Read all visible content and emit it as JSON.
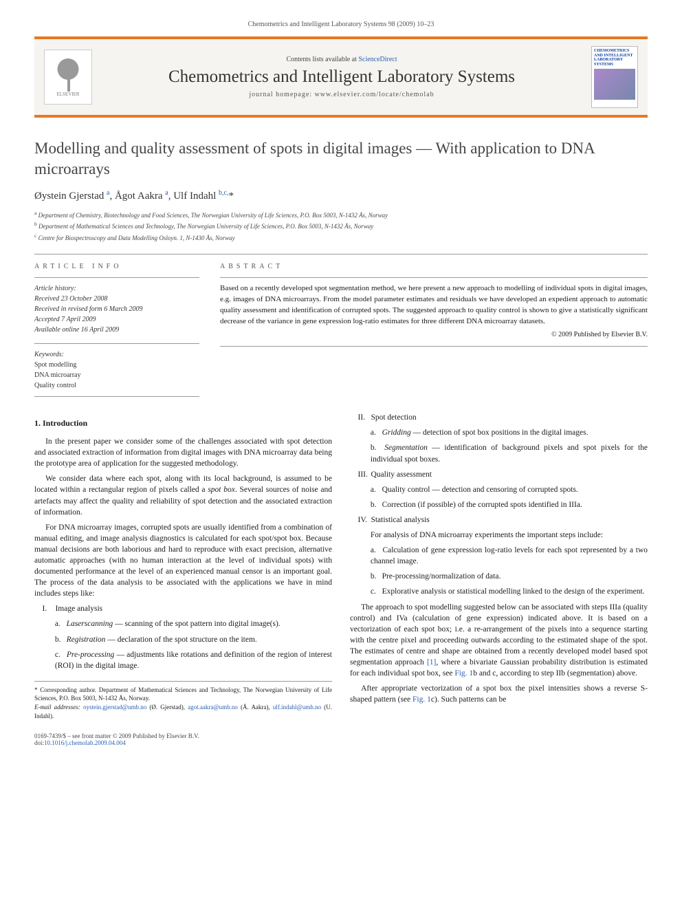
{
  "running_header": "Chemometrics and Intelligent Laboratory Systems 98 (2009) 10–23",
  "banner": {
    "publisher": "ELSEVIER",
    "contents_prefix": "Contents lists available at ",
    "contents_link": "ScienceDirect",
    "journal": "Chemometrics and Intelligent Laboratory Systems",
    "homepage_prefix": "journal homepage: ",
    "homepage": "www.elsevier.com/locate/chemolab",
    "cover_lines": [
      "CHEMOMETRICS",
      "AND INTELLIGENT",
      "LABORATORY",
      "SYSTEMS"
    ]
  },
  "title": "Modelling and quality assessment of spots in digital images — With application to DNA microarrays",
  "authors_html": "Øystein Gjerstad <sup>a</sup>, Ågot Aakra <sup>a</sup>, Ulf Indahl <sup>b,c,</sup>*",
  "affiliations": [
    {
      "mark": "a",
      "text": "Department of Chemistry, Biotechnology and Food Sciences, The Norwegian University of Life Sciences, P.O. Box 5003, N-1432 Ås, Norway"
    },
    {
      "mark": "b",
      "text": "Department of Mathematical Sciences and Technology, The Norwegian University of Life Sciences, P.O. Box 5003, N-1432 Ås, Norway"
    },
    {
      "mark": "c",
      "text": "Centre for Biospectroscopy and Data Modelling Osloyn. 1, N-1430 Ås, Norway"
    }
  ],
  "info": {
    "heading": "ARTICLE INFO",
    "history_label": "Article history:",
    "history": [
      "Received 23 October 2008",
      "Received in revised form 6 March 2009",
      "Accepted 7 April 2009",
      "Available online 16 April 2009"
    ],
    "keywords_label": "Keywords:",
    "keywords": [
      "Spot modelling",
      "DNA microarray",
      "Quality control"
    ]
  },
  "abstract": {
    "heading": "ABSTRACT",
    "text": "Based on a recently developed spot segmentation method, we here present a new approach to modelling of individual spots in digital images, e.g. images of DNA microarrays. From the model parameter estimates and residuals we have developed an expedient approach to automatic quality assessment and identification of corrupted spots. The suggested approach to quality control is shown to give a statistically significant decrease of the variance in gene expression log-ratio estimates for three different DNA microarray datasets.",
    "copyright": "© 2009 Published by Elsevier B.V."
  },
  "section1_heading": "1. Introduction",
  "paras": {
    "p1": "In the present paper we consider some of the challenges associated with spot detection and associated extraction of information from digital images with DNA microarray data being the prototype area of application for the suggested methodology.",
    "p2_a": "We consider data where each spot, along with its local background, is assumed to be located within a rectangular region of pixels called a ",
    "p2_term": "spot box",
    "p2_b": ". Several sources of noise and artefacts may affect the quality and reliability of spot detection and the associated extraction of information.",
    "p3": "For DNA microarray images, corrupted spots are usually identified from a combination of manual editing, and image analysis diagnostics is calculated for each spot/spot box. Because manual decisions are both laborious and hard to reproduce with exact precision, alternative automatic approaches (with no human interaction at the level of individual spots) with documented performance at the level of an experienced manual censor is an important goal. The process of the data analysis to be associated with the applications we have in mind includes steps like:",
    "p4": "The approach to spot modelling suggested below can be associated with steps IIIa (quality control) and IVa (calculation of gene expression) indicated above. It is based on a vectorization of each spot box; i.e. a re-arrangement of the pixels into a sequence starting with the centre pixel and proceeding outwards according to the estimated shape of the spot. The estimates of centre and shape are obtained from a recently developed model based spot segmentation approach ",
    "p4_ref": "[1]",
    "p4_b": ", where a bivariate Gaussian probability distribution is estimated for each individual spot box, see ",
    "p4_fig1": "Fig. 1",
    "p4_c": "b and c, according to step IIb (segmentation) above.",
    "p5_a": "After appropriate vectorization of a spot box the pixel intensities shows a reverse S-shaped pattern (see ",
    "p5_fig": "Fig. 1",
    "p5_b": "c). Such patterns can be"
  },
  "outline": {
    "I": {
      "label": "I.",
      "title": "Image analysis",
      "items": [
        {
          "l": "a.",
          "term": "Laserscanning",
          "rest": " — scanning of the spot pattern into digital image(s)."
        },
        {
          "l": "b.",
          "term": "Registration",
          "rest": " — declaration of the spot structure on the item."
        },
        {
          "l": "c.",
          "term": "Pre-processing",
          "rest": " — adjustments like rotations and definition of the region of interest (ROI) in the digital image."
        }
      ]
    },
    "II": {
      "label": "II.",
      "title": "Spot detection",
      "items": [
        {
          "l": "a.",
          "term": "Gridding",
          "rest": " — detection of spot box positions in the digital images."
        },
        {
          "l": "b.",
          "term": "Segmentation",
          "rest": " — identification of background pixels and spot pixels for the individual spot boxes."
        }
      ]
    },
    "III": {
      "label": "III.",
      "title": "Quality assessment",
      "items": [
        {
          "l": "a.",
          "term": "",
          "rest": "Quality control — detection and censoring of corrupted spots."
        },
        {
          "l": "b.",
          "term": "",
          "rest": "Correction (if possible) of the corrupted spots identified in IIIa."
        }
      ]
    },
    "IV": {
      "label": "IV.",
      "title": "Statistical analysis",
      "lead": "For analysis of DNA microarray experiments the important steps include:",
      "items": [
        {
          "l": "a.",
          "term": "",
          "rest": "Calculation of gene expression log-ratio levels for each spot represented by a two channel image."
        },
        {
          "l": "b.",
          "term": "",
          "rest": "Pre-processing/normalization of data."
        },
        {
          "l": "c.",
          "term": "",
          "rest": "Explorative analysis or statistical modelling linked to the design of the experiment."
        }
      ]
    }
  },
  "footnote": {
    "corr": "* Corresponding author. Department of Mathematical Sciences and Technology, The Norwegian University of Life Sciences, P.O. Box 5003, N-1432 Ås, Norway.",
    "emails_label": "E-mail addresses: ",
    "e1": "oystein.gjerstad@umb.no",
    "n1": " (Ø. Gjerstad), ",
    "e2": "agot.aakra@umb.no",
    "n2": " (Å. Aakra), ",
    "e3": "ulf.indahl@umb.no",
    "n3": " (U. Indahl)."
  },
  "footer": {
    "left1": "0169-7439/$ – see front matter © 2009 Published by Elsevier B.V.",
    "left2_prefix": "doi:",
    "doi": "10.1016/j.chemolab.2009.04.004"
  },
  "colors": {
    "accent": "#e87722",
    "link": "#2a5db0",
    "banner_bg": "#f5f4f0"
  }
}
